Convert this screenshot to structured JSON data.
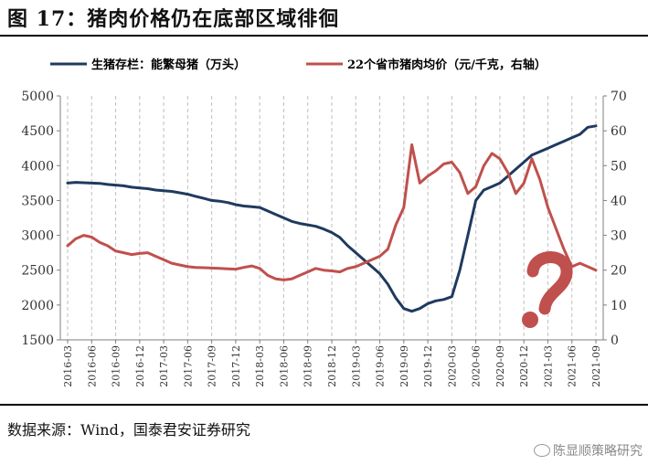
{
  "figure": {
    "title": "图 17：猪肉价格仍在底部区域徘徊",
    "source": "数据来源：Wind，国泰君安证券研究",
    "watermark": "陈显顺策略研究"
  },
  "colors": {
    "herd": "#1f3a5f",
    "price": "#c0504d",
    "axis": "#7f7f7f",
    "grid": "#bfbfbf",
    "annotation": "#c0504d"
  },
  "annotation_icon": "question-mark-icon",
  "chart_data": {
    "type": "line",
    "x": [
      "2016-03",
      "2016-04",
      "2016-05",
      "2016-06",
      "2016-07",
      "2016-08",
      "2016-09",
      "2016-10",
      "2016-11",
      "2016-12",
      "2017-01",
      "2017-02",
      "2017-03",
      "2017-04",
      "2017-05",
      "2017-06",
      "2017-07",
      "2017-08",
      "2017-09",
      "2017-10",
      "2017-11",
      "2017-12",
      "2018-01",
      "2018-02",
      "2018-03",
      "2018-04",
      "2018-05",
      "2018-06",
      "2018-07",
      "2018-08",
      "2018-09",
      "2018-10",
      "2018-11",
      "2018-12",
      "2019-01",
      "2019-02",
      "2019-03",
      "2019-04",
      "2019-05",
      "2019-06",
      "2019-07",
      "2019-08",
      "2019-09",
      "2019-10",
      "2019-11",
      "2019-12",
      "2020-01",
      "2020-02",
      "2020-03",
      "2020-04",
      "2020-05",
      "2020-06",
      "2020-07",
      "2020-08",
      "2020-09",
      "2020-10",
      "2020-11",
      "2020-12",
      "2021-01",
      "2021-02",
      "2021-03",
      "2021-04",
      "2021-05",
      "2021-06",
      "2021-07",
      "2021-08",
      "2021-09"
    ],
    "xticks": [
      "2016-03",
      "2016-06",
      "2016-09",
      "2016-12",
      "2017-03",
      "2017-06",
      "2017-09",
      "2017-12",
      "2018-03",
      "2018-06",
      "2018-09",
      "2018-12",
      "2019-03",
      "2019-06",
      "2019-09",
      "2019-12",
      "2020-03",
      "2020-06",
      "2020-09",
      "2020-12",
      "2021-03",
      "2021-06",
      "2021-09"
    ],
    "series": [
      {
        "name": "生猪存栏：能繁母猪（万头）",
        "axis": "left",
        "values": [
          3750,
          3760,
          3755,
          3750,
          3745,
          3730,
          3720,
          3710,
          3690,
          3680,
          3670,
          3650,
          3640,
          3630,
          3610,
          3590,
          3560,
          3530,
          3500,
          3490,
          3470,
          3440,
          3420,
          3410,
          3400,
          3350,
          3300,
          3250,
          3200,
          3170,
          3150,
          3130,
          3090,
          3040,
          2970,
          2850,
          2750,
          2650,
          2550,
          2450,
          2300,
          2100,
          1950,
          1910,
          1950,
          2020,
          2060,
          2080,
          2120,
          2500,
          3000,
          3500,
          3650,
          3700,
          3750,
          3850,
          3950,
          4050,
          4150,
          4200,
          4250,
          4300,
          4350,
          4400,
          4450,
          4550,
          4570
        ]
      },
      {
        "name": "22个省市猪肉均价（元/千克，右轴）",
        "axis": "right",
        "values": [
          27.0,
          29.0,
          30.0,
          29.5,
          28.0,
          27.0,
          25.5,
          25.0,
          24.5,
          24.8,
          25.0,
          24.0,
          23.0,
          22.0,
          21.5,
          21.0,
          20.8,
          20.7,
          20.6,
          20.5,
          20.4,
          20.3,
          20.8,
          21.2,
          20.5,
          18.5,
          17.5,
          17.2,
          17.5,
          18.5,
          19.5,
          20.5,
          20.0,
          19.8,
          19.5,
          20.5,
          21.0,
          22.0,
          23.0,
          24.0,
          26.0,
          33.0,
          38.0,
          56.0,
          45.0,
          47.0,
          48.5,
          50.5,
          51.0,
          48.0,
          42.0,
          44.0,
          50.0,
          53.5,
          52.0,
          48.0,
          42.0,
          45.0,
          52.0,
          46.0,
          38.0,
          32.0,
          26.0,
          21.0,
          22.0,
          21.0,
          20.0
        ]
      }
    ],
    "left_axis": {
      "ylim": [
        1500,
        5000
      ],
      "ticks": [
        1500,
        2000,
        2500,
        3000,
        3500,
        4000,
        4500,
        5000
      ]
    },
    "right_axis": {
      "ylim": [
        0,
        70
      ],
      "ticks": [
        0,
        10,
        20,
        30,
        40,
        50,
        60,
        70
      ]
    },
    "grid": true,
    "grid_style": "dashed-vertical",
    "legend": "top"
  }
}
